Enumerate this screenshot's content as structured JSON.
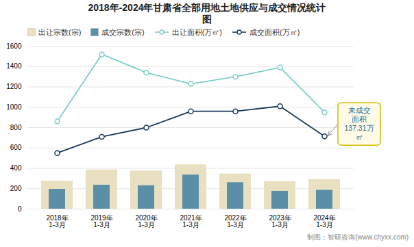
{
  "chart_data": {
    "type": "bar",
    "title": "2018年-2024年甘肃省全部用地土地供应与成交情况统计\n图",
    "categories": [
      "2018年\n1-3月",
      "2019年\n1-3月",
      "2020年\n1-3月",
      "2021年\n1-3月",
      "2022年\n1-3月",
      "2023年\n1-3月",
      "2024年\n1-3月"
    ],
    "series": [
      {
        "name": "出让宗数(宗)",
        "type": "bar",
        "color": "#e8e0c0",
        "values": [
          275,
          385,
          375,
          435,
          345,
          270,
          290
        ]
      },
      {
        "name": "成交宗数(宗)",
        "type": "bar",
        "color": "#5b8fa8",
        "values": [
          195,
          235,
          230,
          335,
          260,
          175,
          185
        ]
      },
      {
        "name": "出让面积(万㎡)",
        "type": "line",
        "color": "#7ececa",
        "marker": "circle",
        "values": [
          860,
          1520,
          1340,
          1230,
          1300,
          1390,
          950
        ]
      },
      {
        "name": "成交面积(万㎡)",
        "type": "line",
        "color": "#1a3a5c",
        "marker": "circle",
        "values": [
          550,
          710,
          800,
          960,
          960,
          1010,
          715
        ]
      }
    ],
    "ylim": [
      0,
      1600
    ],
    "yticks": [
      0,
      200,
      400,
      600,
      800,
      1000,
      1200,
      1400,
      1600
    ],
    "grid": true,
    "legend": "upper left",
    "annotation": "未成交\n面积\n137.31万\n㎡",
    "caption": "制图：智研咨询(www.chyxx.com)"
  }
}
